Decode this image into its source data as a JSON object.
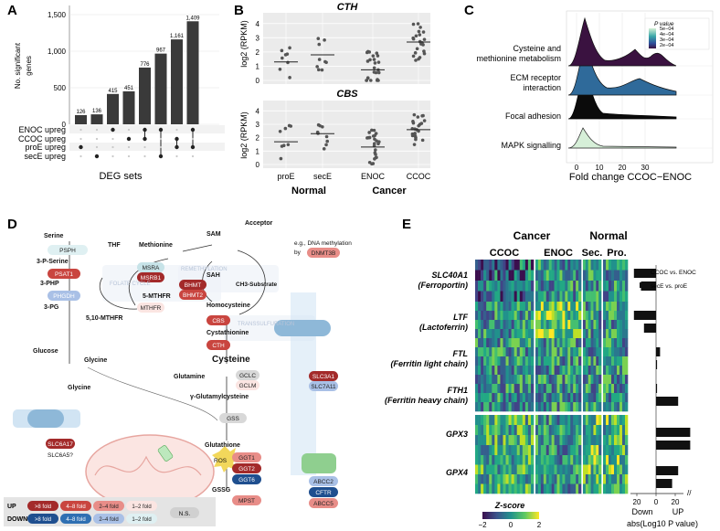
{
  "panels": {
    "a": "A",
    "b": "B",
    "c": "C",
    "d": "D",
    "e": "E"
  },
  "upset": {
    "ylabel_line1": "No. significant",
    "ylabel_line2": "genes",
    "yticks": [
      "0",
      "500",
      "1,000",
      "1,500"
    ],
    "values": [
      126,
      136,
      415,
      451,
      776,
      967,
      1161,
      1409
    ],
    "value_labels": [
      "126",
      "136",
      "415",
      "451",
      "776",
      "967",
      "1,161",
      "1,409"
    ],
    "rows": [
      "ENOC upreg",
      "CCOC upreg",
      "proE upreg",
      "secE upreg"
    ],
    "xlabel": "DEG sets",
    "colors": {
      "bar": "#3a3a3a"
    }
  },
  "dotplot": {
    "top_title": "CTH",
    "bottom_title": "CBS",
    "ylabel": "log2 (RPKM)",
    "yticks": [
      "0",
      "1",
      "2",
      "3",
      "4"
    ],
    "groups": [
      "proE",
      "secE",
      "ENOC",
      "CCOC"
    ],
    "group_label_normal": "Normal",
    "group_label_cancer": "Cancer",
    "cth_medians": [
      1.3,
      1.8,
      0.75,
      2.7
    ],
    "cbs_medians": [
      1.7,
      2.3,
      1.3,
      2.6
    ]
  },
  "ridge": {
    "pathways": [
      "Cysteine and methionine metabolism",
      "ECM receptor interaction",
      "Focal adhesion",
      "MAPK signalling"
    ],
    "legend_title": "P value",
    "legend_ticks": [
      "5e−04",
      "4e−04",
      "3e−04",
      "2e−04"
    ],
    "xticks": [
      "0",
      "10",
      "20",
      "30"
    ],
    "xlabel": "Fold change CCOC−ENOC",
    "colors": {
      "cys": "#3a1240",
      "ecm": "#2f6a9a",
      "focal": "#0b0b0b",
      "mapk": "#d6efd8"
    }
  },
  "pathway": {
    "acceptor": "Acceptor",
    "sam": "SAM",
    "sah": "SAH",
    "eg": "e.g., DNA methylation",
    "by": "by",
    "dnmt3b": "DNMT3B",
    "ch3": "CH3-Substrate",
    "thf": "THF",
    "methionine": "Methionine",
    "msra": "MSRA",
    "msrb1": "MSRB1",
    "remeth": "REMETHYLATION",
    "bhmt": "BHMT",
    "bhmt2": "BHMT2",
    "folate": "FOLATE CYCLE",
    "mthfr5": "5-MTHFR",
    "mthfr": "MTHFR",
    "mthf10": "5,10-MTHFR",
    "homocys": "Homocysteine",
    "cbs": "CBS",
    "transsulf": "TRANSSULFURATION",
    "cystathionine": "Cystathionine",
    "cth": "CTH",
    "cysteine": "Cysteine",
    "serine": "Serine",
    "psph": "PSPH",
    "pser": "3-P-Serine",
    "psat1": "PSAT1",
    "php": "3-PHP",
    "phgdh": "PHGDH",
    "pg": "3-PG",
    "glucose": "Glucose",
    "glycine": "Glycine",
    "glutamine": "Glutamine",
    "gclc": "GCLC",
    "gclm": "GCLM",
    "gglu": "γ-Glutamylcysteine",
    "gss": "GSS",
    "glutathione": "Glutathione",
    "ros": "ROS",
    "ggt1": "GGT1",
    "ggt2": "GGT2",
    "ggt6": "GGT6",
    "gssg": "GSSG",
    "mpst": "MPST",
    "slc3a1": "SLC3A1",
    "slc7a11": "SLC7A11",
    "slc6a17": "SLC6A17",
    "slc6a5": "SLC6A5?",
    "glycine2": "Glycine",
    "abcc2": "ABCC2",
    "cftr": "CFTR",
    "abcc5": "ABCC5",
    "legend": {
      "up": "UP",
      "down": "DOWN",
      "up8": ">8 fold",
      "up48": "4–8 fold",
      "up24": "2–4 fold",
      "up12": "1–2 fold",
      "dn8": ">8 fold",
      "dn48": "4–8 fold",
      "dn24": "2–4 fold",
      "dn12": "1–2 fold",
      "ns": "N.S."
    }
  },
  "heatmap": {
    "cancer": "Cancer",
    "normal": "Normal",
    "ccoc": "CCOC",
    "enoc": "ENOC",
    "sec": "Sec.",
    "pro": "Pro.",
    "genes": [
      {
        "sym": "SLC40A1",
        "name": "(Ferroportin)"
      },
      {
        "sym": "LTF",
        "name": "(Lactoferrin)"
      },
      {
        "sym": "FTL",
        "name": "(Ferritin light chain)"
      },
      {
        "sym": "FTH1",
        "name": "(Ferritin heavy chain)"
      },
      {
        "sym": "GPX3",
        "name": ""
      },
      {
        "sym": "GPX4",
        "name": ""
      }
    ],
    "legend_title": "Z-score",
    "legend_ticks": [
      "−2",
      "0",
      "2"
    ],
    "bar_legend_1": "CCOC vs. ENOC",
    "bar_legend_2": "secE vs. proE",
    "bar_xticks": [
      "20",
      "0",
      "20"
    ],
    "bar_down": "Down",
    "bar_up": "UP",
    "bar_xlabel": "abs(Log10 P value)"
  }
}
